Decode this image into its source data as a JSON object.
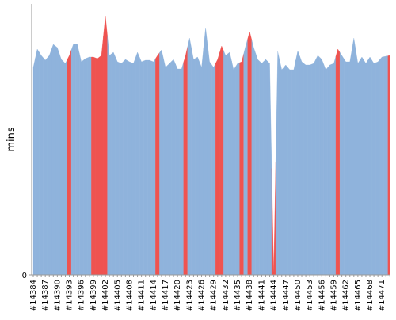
{
  "chart_data": {
    "type": "area",
    "y_label": "mins",
    "categories": [
      "#14384",
      null,
      null,
      "#14387",
      null,
      null,
      "#14390",
      null,
      null,
      "#14393",
      null,
      null,
      "#14396",
      null,
      null,
      "#14399",
      null,
      null,
      "#14402",
      null,
      null,
      "#14405",
      null,
      null,
      "#14408",
      null,
      null,
      "#14411",
      null,
      null,
      "#14414",
      null,
      null,
      "#14417",
      null,
      null,
      "#14420",
      null,
      null,
      "#14423",
      null,
      null,
      "#14426",
      null,
      null,
      "#14429",
      null,
      null,
      "#14432",
      null,
      null,
      "#14435",
      null,
      null,
      "#14438",
      null,
      null,
      "#14441",
      null,
      null,
      "#14444",
      null,
      null,
      "#14447",
      null,
      null,
      "#14450",
      null,
      null,
      "#14453",
      null,
      null,
      "#14456",
      null,
      null,
      "#14459",
      null,
      null,
      "#14462",
      null,
      null,
      "#14465",
      null,
      null,
      "#14468",
      null,
      null,
      "#14471",
      null,
      null
    ],
    "values": [
      26.2,
      28.5,
      27.7,
      27.1,
      27.7,
      29.1,
      28.7,
      27.2,
      26.7,
      27.7,
      29.1,
      29.1,
      26.9,
      27.3,
      27.5,
      27.5,
      27.3,
      27.7,
      32.7,
      27.7,
      28.1,
      26.9,
      26.7,
      27.2,
      26.9,
      26.7,
      28.1,
      26.9,
      27.1,
      27.1,
      26.9,
      27.7,
      28.4,
      26.2,
      26.7,
      27.2,
      26.0,
      26.0,
      27.7,
      29.9,
      27.2,
      27.5,
      26.2,
      31.2,
      26.9,
      26.2,
      27.2,
      28.9,
      27.7,
      28.1,
      25.9,
      26.7,
      26.9,
      28.9,
      30.7,
      28.7,
      27.2,
      26.7,
      27.2,
      26.7,
      0.2,
      28.2,
      25.9,
      26.5,
      25.9,
      25.9,
      28.3,
      26.9,
      26.5,
      26.5,
      26.7,
      27.7,
      27.2,
      25.9,
      26.5,
      26.7,
      28.5,
      27.7,
      26.9,
      26.9,
      29.9,
      26.7,
      27.5,
      26.7,
      27.5,
      26.7,
      26.9,
      27.5,
      27.6,
      27.7
    ],
    "point_colors": [
      "#8fb3dc",
      "#8fb3dc",
      "#8fb3dc",
      "#8fb3dc",
      "#8fb3dc",
      "#8fb3dc",
      "#8fb3dc",
      "#8fb3dc",
      "#8fb3dc",
      "#ef5350",
      "#8fb3dc",
      "#8fb3dc",
      "#8fb3dc",
      "#8fb3dc",
      "#8fb3dc",
      "#ef5350",
      "#ef5350",
      "#ef5350",
      "#ef5350",
      "#8fb3dc",
      "#8fb3dc",
      "#8fb3dc",
      "#8fb3dc",
      "#8fb3dc",
      "#8fb3dc",
      "#8fb3dc",
      "#8fb3dc",
      "#8fb3dc",
      "#8fb3dc",
      "#8fb3dc",
      "#8fb3dc",
      "#ef5350",
      "#8fb3dc",
      "#8fb3dc",
      "#8fb3dc",
      "#8fb3dc",
      "#8fb3dc",
      "#8fb3dc",
      "#ef5350",
      "#8fb3dc",
      "#8fb3dc",
      "#8fb3dc",
      "#8fb3dc",
      "#8fb3dc",
      "#8fb3dc",
      "#8fb3dc",
      "#ef5350",
      "#ef5350",
      "#8fb3dc",
      "#8fb3dc",
      "#8fb3dc",
      "#8fb3dc",
      "#ef5350",
      "#8fb3dc",
      "#ef5350",
      "#8fb3dc",
      "#8fb3dc",
      "#8fb3dc",
      "#8fb3dc",
      "#8fb3dc",
      "#ef5350",
      "#8fb3dc",
      "#8fb3dc",
      "#8fb3dc",
      "#8fb3dc",
      "#8fb3dc",
      "#8fb3dc",
      "#8fb3dc",
      "#8fb3dc",
      "#8fb3dc",
      "#8fb3dc",
      "#8fb3dc",
      "#8fb3dc",
      "#8fb3dc",
      "#8fb3dc",
      "#8fb3dc",
      "#ef5350",
      "#8fb3dc",
      "#8fb3dc",
      "#8fb3dc",
      "#8fb3dc",
      "#8fb3dc",
      "#8fb3dc",
      "#8fb3dc",
      "#8fb3dc",
      "#8fb3dc",
      "#8fb3dc",
      "#8fb3dc",
      "#8fb3dc",
      "#ef5350"
    ],
    "ylim": [
      0,
      34.2
    ],
    "yticks": [
      0
    ]
  }
}
